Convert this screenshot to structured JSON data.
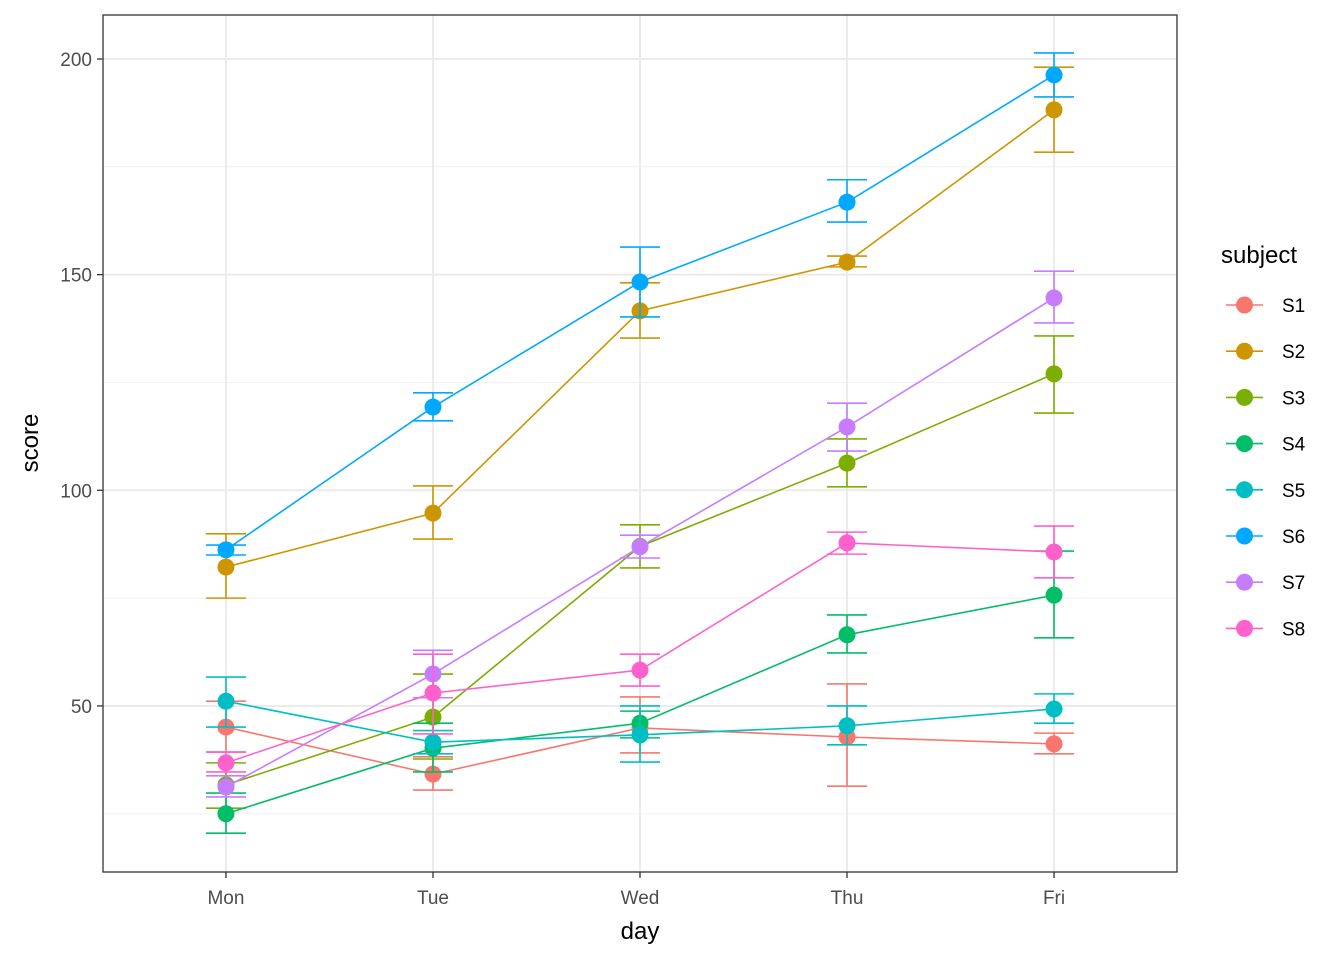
{
  "chart_data": {
    "type": "line",
    "title": "",
    "xlabel": "day",
    "ylabel": "score",
    "categories": [
      "Mon",
      "Tue",
      "Wed",
      "Thu",
      "Fri"
    ],
    "ylim": [
      11.5,
      210.2
    ],
    "yticks": [
      50,
      100,
      150,
      200
    ],
    "yticks_minor": [
      25,
      75,
      125,
      175
    ],
    "grid": true,
    "legend": {
      "title": "subject",
      "position": "right"
    },
    "series": [
      {
        "name": "S1",
        "color": "#F8766D",
        "values": [
          45.1,
          34.2,
          44.9,
          42.8,
          41.2
        ],
        "err_low": [
          39.3,
          30.5,
          39.1,
          31.4,
          38.9
        ],
        "err_high": [
          51.1,
          38.2,
          52.1,
          55.1,
          43.7
        ]
      },
      {
        "name": "S2",
        "color": "#CD9600",
        "values": [
          82.2,
          94.7,
          141.6,
          152.9,
          188.2
        ],
        "err_low": [
          75.0,
          88.7,
          135.3,
          151.8,
          178.4
        ],
        "err_high": [
          89.9,
          101.0,
          148.1,
          154.3,
          198.1
        ]
      },
      {
        "name": "S3",
        "color": "#7CAE00",
        "values": [
          31.7,
          47.4,
          87.0,
          106.3,
          127.0
        ],
        "err_low": [
          26.3,
          37.7,
          82.0,
          100.8,
          117.9
        ],
        "err_high": [
          36.8,
          57.4,
          92.0,
          111.9,
          135.8
        ]
      },
      {
        "name": "S4",
        "color": "#00BE67",
        "values": [
          25.0,
          40.2,
          46.0,
          66.5,
          75.7
        ],
        "err_low": [
          20.5,
          34.7,
          42.6,
          62.3,
          65.8
        ],
        "err_high": [
          29.8,
          46.0,
          48.8,
          71.1,
          85.9
        ]
      },
      {
        "name": "S5",
        "color": "#00BFC4",
        "values": [
          51.1,
          41.6,
          43.3,
          45.4,
          49.3
        ],
        "err_low": [
          45.1,
          38.9,
          37.0,
          41.0,
          46.0
        ],
        "err_high": [
          56.7,
          44.3,
          50.0,
          50.0,
          52.8
        ]
      },
      {
        "name": "S6",
        "color": "#00A9FF",
        "values": [
          86.2,
          119.3,
          148.3,
          166.8,
          196.3
        ],
        "err_low": [
          85.0,
          116.1,
          140.2,
          162.2,
          191.2
        ],
        "err_high": [
          87.3,
          122.6,
          156.4,
          172.0,
          201.4
        ]
      },
      {
        "name": "S7",
        "color": "#C77CFF",
        "values": [
          31.2,
          57.4,
          86.9,
          114.7,
          144.6
        ],
        "err_low": [
          28.9,
          51.9,
          84.3,
          109.1,
          138.8
        ],
        "err_high": [
          33.8,
          62.9,
          89.6,
          120.2,
          150.8
        ]
      },
      {
        "name": "S8",
        "color": "#FF61CC",
        "values": [
          36.8,
          53.0,
          58.3,
          87.8,
          85.7
        ],
        "err_low": [
          34.7,
          43.5,
          54.6,
          85.2,
          79.7
        ],
        "err_high": [
          39.3,
          62.0,
          62.0,
          90.3,
          91.7
        ]
      }
    ]
  }
}
